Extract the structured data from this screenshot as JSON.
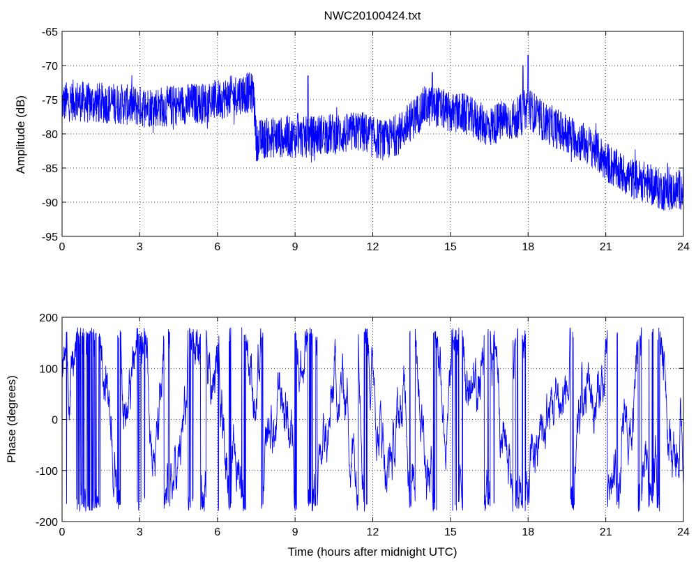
{
  "chart_data": [
    {
      "type": "line",
      "title": "NWC20100424.txt",
      "xlabel": "",
      "ylabel": "Amplitude (dB)",
      "xlim": [
        0,
        24
      ],
      "ylim": [
        -95,
        -65
      ],
      "xticks": [
        "0",
        "3",
        "6",
        "9",
        "12",
        "15",
        "18",
        "21",
        "24"
      ],
      "yticks": [
        "-95",
        "-90",
        "-85",
        "-80",
        "-75",
        "-70",
        "-65"
      ],
      "grid": true,
      "line_color": "#0000ff",
      "series": [
        {
          "trend_x": [
            0,
            0.5,
            1,
            2,
            3,
            4,
            5,
            5.5,
            6,
            6.5,
            7,
            7.4,
            7.5,
            8,
            9,
            9.5,
            10,
            11,
            11.5,
            12,
            12.5,
            13,
            13.5,
            14,
            14.5,
            15,
            15.5,
            16,
            16.5,
            17,
            17.5,
            18,
            18.5,
            19,
            19.5,
            20,
            20.5,
            21,
            21.5,
            22,
            22.5,
            23,
            23.5,
            24
          ],
          "trend_y": [
            -75.5,
            -75,
            -75.5,
            -75.5,
            -76,
            -76,
            -75.5,
            -75.5,
            -75,
            -74.5,
            -74,
            -74,
            -81,
            -80.5,
            -80.5,
            -80.5,
            -80,
            -80,
            -79.5,
            -80.5,
            -81,
            -80,
            -78,
            -76,
            -76,
            -77,
            -77,
            -78,
            -79,
            -78,
            -78,
            -76,
            -78,
            -79,
            -80,
            -81,
            -82,
            -84,
            -85.5,
            -86.5,
            -87,
            -88,
            -88.5,
            -88
          ],
          "noise_amplitude_db": 3,
          "spikes": [
            {
              "x": 9.1,
              "y": -77
            },
            {
              "x": 9.5,
              "y": -71.5
            },
            {
              "x": 14.3,
              "y": -71
            },
            {
              "x": 17.8,
              "y": -70
            },
            {
              "x": 18.0,
              "y": -68.5
            }
          ]
        }
      ]
    },
    {
      "type": "line",
      "title": "",
      "xlabel": "Time (hours after midnight UTC)",
      "ylabel": "Phase (degrees)",
      "xlim": [
        0,
        24
      ],
      "ylim": [
        -200,
        200
      ],
      "xticks": [
        "0",
        "3",
        "6",
        "9",
        "12",
        "15",
        "18",
        "21",
        "24"
      ],
      "yticks": [
        "-200",
        "-100",
        "0",
        "100",
        "200"
      ],
      "grid": true,
      "line_color": "#0000ff",
      "series": [
        {
          "wrap_range": [
            -180,
            180
          ],
          "start_value": 140,
          "notes": "phase wraps between -180 and 180 degrees"
        }
      ]
    }
  ]
}
